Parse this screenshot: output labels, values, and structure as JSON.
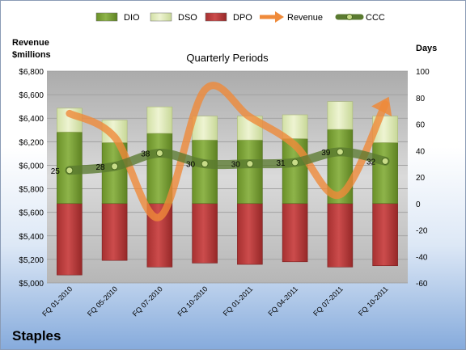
{
  "company": "Staples",
  "chart_data": {
    "type": "bar",
    "title": "Quarterly Periods",
    "stacked": true,
    "left_axis": {
      "label_line1": "Revenue",
      "label_line2": "$millions",
      "ylim": [
        5000,
        6800
      ],
      "ticks": [
        5000,
        5200,
        5400,
        5600,
        5800,
        6000,
        6200,
        6400,
        6600,
        6800
      ],
      "tick_labels": [
        "$5,000",
        "$5,200",
        "$5,400",
        "$5,600",
        "$5,800",
        "$6,000",
        "$6,200",
        "$6,400",
        "$6,600",
        "$6,800"
      ]
    },
    "right_axis": {
      "label": "Days",
      "ylim": [
        -60,
        100
      ],
      "ticks": [
        -60,
        -40,
        -20,
        0,
        20,
        40,
        60,
        80,
        100
      ],
      "tick_labels": [
        "-60",
        "-40",
        "-20",
        "0",
        "20",
        "40",
        "60",
        "80",
        "100"
      ]
    },
    "categories": [
      "FQ 01-2010",
      "FQ 05-2010",
      "FQ 07-2010",
      "FQ 10-2010",
      "FQ 01-2011",
      "FQ 04-2011",
      "FQ 07-2011",
      "FQ 10-2011"
    ],
    "series": [
      {
        "name": "DIO",
        "axis": "right",
        "kind": "bar",
        "values": [
          54,
          46,
          53,
          48,
          48,
          49,
          56,
          46
        ]
      },
      {
        "name": "DSO",
        "axis": "right",
        "kind": "bar",
        "values": [
          18,
          17,
          20,
          18,
          18,
          18,
          21,
          20
        ]
      },
      {
        "name": "DPO",
        "axis": "right",
        "kind": "bar-negative",
        "values": [
          -54,
          -43,
          -48,
          -45,
          -46,
          -44,
          -48,
          -47
        ]
      },
      {
        "name": "Revenue",
        "axis": "left",
        "kind": "line",
        "values": [
          6440,
          6240,
          5560,
          6640,
          6410,
          6170,
          5750,
          6520
        ]
      },
      {
        "name": "CCC",
        "axis": "right",
        "kind": "line",
        "values": [
          25,
          28,
          38,
          30,
          30,
          31,
          39,
          32
        ]
      }
    ],
    "ccc_labels": [
      "25",
      "28",
      "38",
      "30",
      "30",
      "31",
      "39",
      "32"
    ],
    "legend": {
      "position": "top",
      "items": [
        {
          "name": "DIO",
          "kind": "bar"
        },
        {
          "name": "DSO",
          "kind": "bar"
        },
        {
          "name": "DPO",
          "kind": "bar"
        },
        {
          "name": "Revenue",
          "kind": "arrow"
        },
        {
          "name": "CCC",
          "kind": "line-marker"
        }
      ]
    },
    "grid": true,
    "colors": {
      "DIO": "#7ea536",
      "DSO": "#e0ebbb",
      "DPO": "#c04040",
      "Revenue": "#ef8a3a",
      "CCC": "#6a8a40",
      "plot_bg": "#c6c6c6"
    }
  }
}
